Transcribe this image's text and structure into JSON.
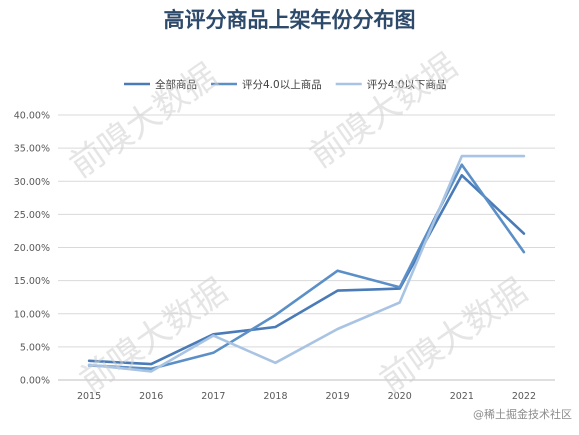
{
  "chart_data": {
    "type": "line",
    "title": "高评分商品上架年份分布图",
    "xlabel": "",
    "ylabel": "",
    "categories": [
      "2015",
      "2016",
      "2017",
      "2018",
      "2019",
      "2020",
      "2021",
      "2022"
    ],
    "ylim": [
      0,
      40
    ],
    "y_ticks": [
      "0.00%",
      "5.00%",
      "10.00%",
      "15.00%",
      "20.00%",
      "25.00%",
      "30.00%",
      "35.00%",
      "40.00%"
    ],
    "grid": true,
    "legend_position": "top",
    "series": [
      {
        "name": "全部商品",
        "color": "#4a7bb7",
        "values": [
          2.9,
          2.4,
          6.9,
          8.0,
          13.5,
          13.8,
          30.9,
          22.1
        ]
      },
      {
        "name": "评分4.0以上商品",
        "color": "#5b8fc7",
        "values": [
          2.2,
          1.7,
          4.1,
          9.8,
          16.5,
          14.0,
          32.5,
          19.3
        ]
      },
      {
        "name": "评分4.0以下商品",
        "color": "#a9c4e3",
        "values": [
          2.3,
          1.3,
          6.7,
          2.6,
          7.7,
          11.7,
          33.8,
          33.8
        ]
      }
    ]
  },
  "watermark": "前嗅大数据",
  "footer": "@稀土掘金技术社区"
}
